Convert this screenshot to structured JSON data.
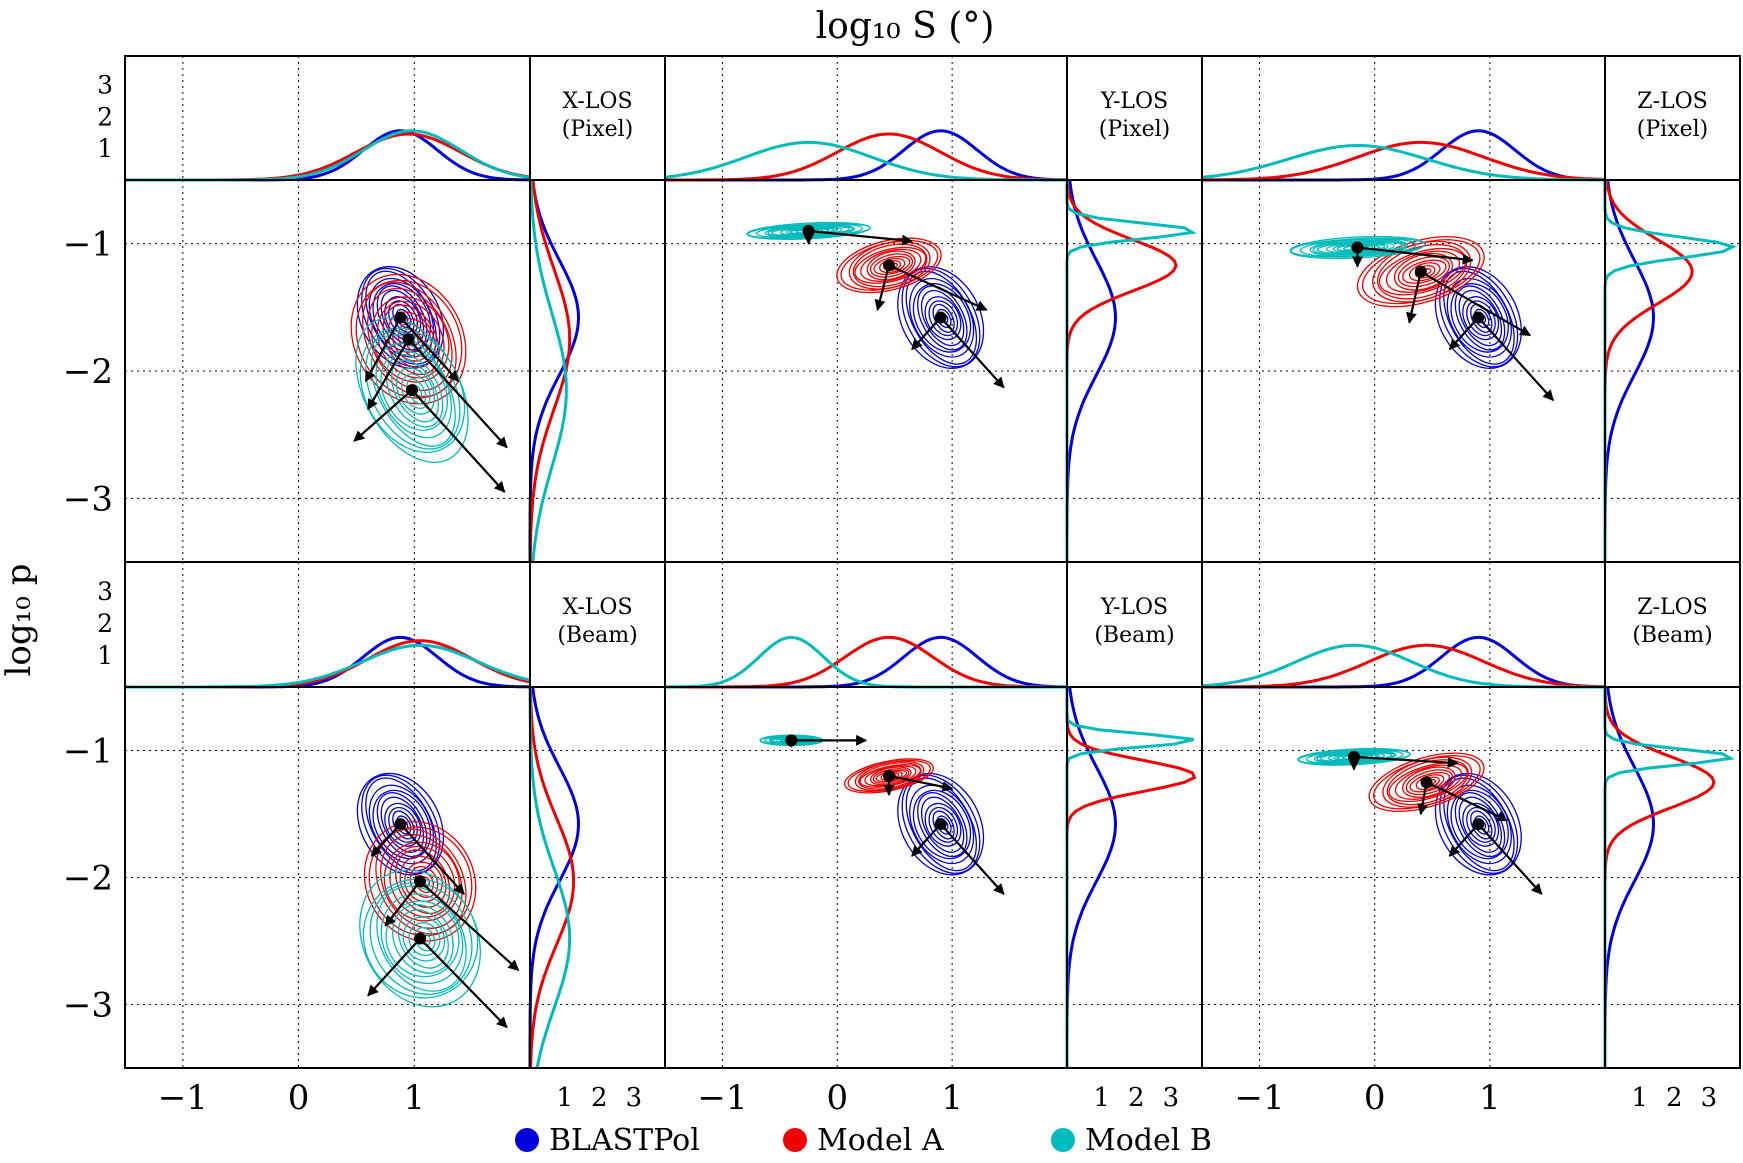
{
  "figure": {
    "xlabel": "log₁₀ S (°)",
    "ylabel": "log₁₀ p"
  },
  "legend": [
    {
      "label": "BLASTPol",
      "color": "#0000dd"
    },
    {
      "label": "Model A",
      "color": "#ee0000"
    },
    {
      "label": "Model B",
      "color": "#00bbbb"
    }
  ],
  "colors": {
    "blastpol": "#0000dd",
    "modelA": "#ee0000",
    "modelB": "#00bbbb",
    "arrow": "#000000"
  },
  "chart_data": [
    {
      "type": "scatter",
      "panel": "X-LOS (Pixel)",
      "title_line1": "X-LOS",
      "title_line2": "(Pixel)",
      "xlim": [
        -1.5,
        2.0
      ],
      "ylim": [
        -3.5,
        -0.5
      ],
      "x_ticks": [
        "−1",
        "0",
        "1"
      ],
      "y_ticks": [
        "−1",
        "−2",
        "−3"
      ],
      "top_hist_ticks": [
        "1",
        "2",
        "3"
      ],
      "side_hist_ticks": [
        "1",
        "2",
        "3"
      ],
      "series": [
        {
          "name": "BLASTPol",
          "center": [
            0.88,
            -1.58
          ],
          "spread": [
            0.32,
            0.45
          ],
          "tilt": -0.55,
          "major": [
            0.5,
            -0.5
          ],
          "minor": [
            -0.3,
            -0.5
          ]
        },
        {
          "name": "Model A",
          "center": [
            0.95,
            -1.75
          ],
          "spread": [
            0.45,
            0.55
          ],
          "tilt": -0.55,
          "major": [
            0.85,
            -0.85
          ],
          "minor": [
            -0.35,
            -0.55
          ]
        },
        {
          "name": "Model B",
          "center": [
            0.98,
            -2.15
          ],
          "spread": [
            0.42,
            0.6
          ],
          "tilt": -0.55,
          "major": [
            0.8,
            -0.8
          ],
          "minor": [
            -0.5,
            -0.4
          ]
        }
      ]
    },
    {
      "type": "scatter",
      "panel": "Y-LOS (Pixel)",
      "title_line1": "Y-LOS",
      "title_line2": "(Pixel)",
      "xlim": [
        -1.5,
        2.0
      ],
      "ylim": [
        -3.5,
        -0.5
      ],
      "x_ticks": [
        "−1",
        "0",
        "1"
      ],
      "y_ticks": [],
      "top_hist_ticks": [],
      "side_hist_ticks": [
        "1",
        "2",
        "3"
      ],
      "series": [
        {
          "name": "BLASTPol",
          "center": [
            0.9,
            -1.58
          ],
          "spread": [
            0.32,
            0.45
          ],
          "tilt": -0.55,
          "major": [
            0.55,
            -0.55
          ],
          "minor": [
            -0.25,
            -0.25
          ]
        },
        {
          "name": "Model A",
          "center": [
            0.45,
            -1.17
          ],
          "spread": [
            0.45,
            0.2
          ],
          "tilt": -0.25,
          "major": [
            0.85,
            -0.35
          ],
          "minor": [
            -0.1,
            -0.35
          ]
        },
        {
          "name": "Model B",
          "center": [
            -0.25,
            -0.9
          ],
          "spread": [
            0.55,
            0.06
          ],
          "tilt": -0.05,
          "major": [
            0.9,
            -0.08
          ],
          "minor": [
            0.0,
            -0.1
          ]
        }
      ]
    },
    {
      "type": "scatter",
      "panel": "Z-LOS (Pixel)",
      "title_line1": "Z-LOS",
      "title_line2": "(Pixel)",
      "xlim": [
        -1.5,
        2.0
      ],
      "ylim": [
        -3.5,
        -0.5
      ],
      "x_ticks": [
        "−1",
        "0",
        "1"
      ],
      "y_ticks": [],
      "top_hist_ticks": [],
      "side_hist_ticks": [
        "1",
        "2",
        "3"
      ],
      "series": [
        {
          "name": "BLASTPol",
          "center": [
            0.9,
            -1.58
          ],
          "spread": [
            0.32,
            0.45
          ],
          "tilt": -0.55,
          "major": [
            0.65,
            -0.65
          ],
          "minor": [
            -0.25,
            -0.25
          ]
        },
        {
          "name": "Model A",
          "center": [
            0.4,
            -1.22
          ],
          "spread": [
            0.55,
            0.25
          ],
          "tilt": -0.3,
          "major": [
            0.95,
            -0.5
          ],
          "minor": [
            -0.1,
            -0.4
          ]
        },
        {
          "name": "Model B",
          "center": [
            -0.15,
            -1.03
          ],
          "spread": [
            0.6,
            0.08
          ],
          "tilt": -0.05,
          "major": [
            1.0,
            -0.1
          ],
          "minor": [
            0.0,
            -0.15
          ]
        }
      ]
    },
    {
      "type": "scatter",
      "panel": "X-LOS (Beam)",
      "title_line1": "X-LOS",
      "title_line2": "(Beam)",
      "xlim": [
        -1.5,
        2.0
      ],
      "ylim": [
        -3.5,
        -0.5
      ],
      "x_ticks": [
        "−1",
        "0",
        "1"
      ],
      "y_ticks": [
        "−1",
        "−2",
        "−3"
      ],
      "top_hist_ticks": [
        "1",
        "2",
        "3"
      ],
      "side_hist_ticks": [
        "1",
        "2",
        "3"
      ],
      "series": [
        {
          "name": "BLASTPol",
          "center": [
            0.88,
            -1.58
          ],
          "spread": [
            0.32,
            0.45
          ],
          "tilt": -0.55,
          "major": [
            0.55,
            -0.55
          ],
          "minor": [
            -0.25,
            -0.25
          ]
        },
        {
          "name": "Model A",
          "center": [
            1.05,
            -2.03
          ],
          "spread": [
            0.45,
            0.5
          ],
          "tilt": -0.55,
          "major": [
            0.85,
            -0.7
          ],
          "minor": [
            -0.3,
            -0.35
          ]
        },
        {
          "name": "Model B",
          "center": [
            1.05,
            -2.48
          ],
          "spread": [
            0.5,
            0.55
          ],
          "tilt": -0.55,
          "major": [
            0.75,
            -0.7
          ],
          "minor": [
            -0.45,
            -0.45
          ]
        }
      ]
    },
    {
      "type": "scatter",
      "panel": "Y-LOS (Beam)",
      "title_line1": "Y-LOS",
      "title_line2": "(Beam)",
      "xlim": [
        -1.5,
        2.0
      ],
      "ylim": [
        -3.5,
        -0.5
      ],
      "x_ticks": [
        "−1",
        "0",
        "1"
      ],
      "y_ticks": [],
      "top_hist_ticks": [],
      "side_hist_ticks": [
        "1",
        "2",
        "3"
      ],
      "series": [
        {
          "name": "BLASTPol",
          "center": [
            0.9,
            -1.58
          ],
          "spread": [
            0.32,
            0.45
          ],
          "tilt": -0.55,
          "major": [
            0.55,
            -0.55
          ],
          "minor": [
            -0.25,
            -0.25
          ]
        },
        {
          "name": "Model A",
          "center": [
            0.45,
            -1.2
          ],
          "spread": [
            0.38,
            0.12
          ],
          "tilt": -0.2,
          "major": [
            0.55,
            -0.1
          ],
          "minor": [
            0.0,
            -0.15
          ]
        },
        {
          "name": "Model B",
          "center": [
            -0.4,
            -0.92
          ],
          "spread": [
            0.28,
            0.04
          ],
          "tilt": 0.0,
          "major": [
            0.65,
            0.0
          ],
          "minor": [
            0.0,
            -0.05
          ]
        }
      ]
    },
    {
      "type": "scatter",
      "panel": "Z-LOS (Beam)",
      "title_line1": "Z-LOS",
      "title_line2": "(Beam)",
      "xlim": [
        -1.5,
        2.0
      ],
      "ylim": [
        -3.5,
        -0.5
      ],
      "x_ticks": [
        "−1",
        "0",
        "1"
      ],
      "y_ticks": [],
      "top_hist_ticks": [],
      "side_hist_ticks": [
        "1",
        "2",
        "3"
      ],
      "series": [
        {
          "name": "BLASTPol",
          "center": [
            0.9,
            -1.58
          ],
          "spread": [
            0.32,
            0.45
          ],
          "tilt": -0.55,
          "major": [
            0.55,
            -0.55
          ],
          "minor": [
            -0.25,
            -0.25
          ]
        },
        {
          "name": "Model A",
          "center": [
            0.45,
            -1.25
          ],
          "spread": [
            0.5,
            0.2
          ],
          "tilt": -0.3,
          "major": [
            0.7,
            -0.3
          ],
          "minor": [
            -0.05,
            -0.25
          ]
        },
        {
          "name": "Model B",
          "center": [
            -0.18,
            -1.05
          ],
          "spread": [
            0.5,
            0.06
          ],
          "tilt": -0.05,
          "major": [
            0.9,
            -0.05
          ],
          "minor": [
            0.0,
            -0.1
          ]
        }
      ]
    }
  ]
}
